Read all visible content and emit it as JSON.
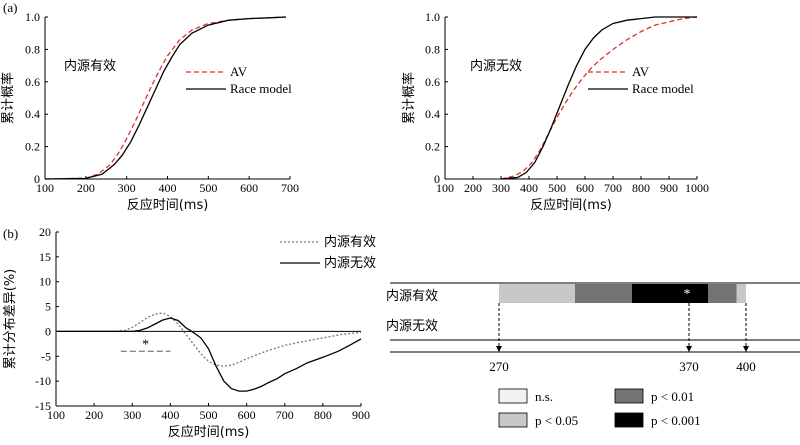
{
  "panel_labels": {
    "a": "(a)",
    "b": "(b)"
  },
  "chart_data": [
    {
      "type": "line",
      "title": "内源有效",
      "xlabel": "反应时间(ms)",
      "ylabel": "累计概率",
      "xlim": [
        100,
        700
      ],
      "ylim": [
        0,
        1.0
      ],
      "xticks": [
        100,
        200,
        300,
        400,
        500,
        600,
        700
      ],
      "yticks": [
        0,
        0.2,
        0.4,
        0.6,
        0.8,
        1.0
      ],
      "yticklabels": [
        "0",
        "0.2",
        "0.4",
        "0.6",
        "0.8",
        "1.0"
      ],
      "legend": [
        "AV",
        "Race model"
      ],
      "series": [
        {
          "name": "AV",
          "style": "dashed",
          "color": "#e0302a",
          "x": [
            100,
            200,
            230,
            260,
            280,
            300,
            320,
            340,
            360,
            380,
            400,
            430,
            460,
            500,
            550,
            600,
            650,
            690
          ],
          "y": [
            0,
            0.005,
            0.03,
            0.09,
            0.16,
            0.25,
            0.35,
            0.46,
            0.57,
            0.67,
            0.76,
            0.86,
            0.92,
            0.96,
            0.98,
            0.99,
            0.995,
            1.0
          ]
        },
        {
          "name": "Race model",
          "style": "solid",
          "color": "#000000",
          "x": [
            100,
            200,
            240,
            270,
            290,
            310,
            330,
            350,
            370,
            390,
            410,
            430,
            460,
            500,
            550,
            600,
            650,
            690
          ],
          "y": [
            0,
            0.004,
            0.03,
            0.09,
            0.15,
            0.23,
            0.33,
            0.44,
            0.55,
            0.66,
            0.75,
            0.83,
            0.9,
            0.95,
            0.98,
            0.99,
            0.995,
            1.0
          ]
        }
      ]
    },
    {
      "type": "line",
      "title": "内源无效",
      "xlabel": "反应时间(ms)",
      "ylabel": "累计概率",
      "xlim": [
        100,
        1000
      ],
      "ylim": [
        0,
        1.0
      ],
      "xticks": [
        100,
        200,
        300,
        400,
        500,
        600,
        700,
        800,
        900,
        1000
      ],
      "yticks": [
        0,
        0.2,
        0.4,
        0.6,
        0.8,
        1.0
      ],
      "yticklabels": [
        "0",
        "0.2",
        "0.4",
        "0.6",
        "0.8",
        "1.0"
      ],
      "legend": [
        "AV",
        "Race model"
      ],
      "series": [
        {
          "name": "AV",
          "style": "dashed",
          "color": "#e0302a",
          "x": [
            300,
            350,
            380,
            410,
            440,
            470,
            500,
            530,
            560,
            590,
            620,
            650,
            700,
            750,
            800,
            850,
            900,
            950,
            1000
          ],
          "y": [
            0,
            0.02,
            0.05,
            0.1,
            0.18,
            0.28,
            0.38,
            0.47,
            0.55,
            0.62,
            0.68,
            0.73,
            0.8,
            0.86,
            0.91,
            0.95,
            0.97,
            0.99,
            1.0
          ]
        },
        {
          "name": "Race model",
          "style": "solid",
          "color": "#000000",
          "x": [
            300,
            360,
            390,
            420,
            450,
            480,
            510,
            540,
            570,
            600,
            630,
            660,
            700,
            750,
            800,
            850,
            900,
            950,
            1000
          ],
          "y": [
            0,
            0.01,
            0.04,
            0.1,
            0.2,
            0.32,
            0.45,
            0.58,
            0.7,
            0.8,
            0.87,
            0.92,
            0.96,
            0.98,
            0.99,
            1.0,
            1.0,
            1.0,
            1.0
          ]
        }
      ]
    },
    {
      "type": "line",
      "xlabel": "反应时间(ms)",
      "ylabel": "累计分布差异(%)",
      "xlim": [
        100,
        900
      ],
      "ylim": [
        -15,
        20
      ],
      "xticks": [
        100,
        200,
        300,
        400,
        500,
        600,
        700,
        800,
        900
      ],
      "yticks": [
        -15,
        -10,
        -5,
        0,
        5,
        10,
        15,
        20
      ],
      "zero_line": true,
      "legend": [
        "内源有效",
        "内源无效"
      ],
      "annotation": {
        "text": "*",
        "x_range": [
          270,
          400
        ],
        "y": -4
      },
      "series": [
        {
          "name": "内源有效",
          "style": "dotted",
          "color": "#777777",
          "x": [
            100,
            250,
            280,
            300,
            320,
            340,
            360,
            380,
            400,
            420,
            440,
            460,
            480,
            500,
            520,
            540,
            560,
            580,
            600,
            650,
            700,
            750,
            800,
            850,
            900
          ],
          "y": [
            0,
            0,
            0.2,
            0.8,
            1.8,
            2.8,
            3.5,
            3.7,
            3.0,
            1.5,
            -0.5,
            -2.5,
            -4.5,
            -6,
            -6.8,
            -7,
            -6.8,
            -6.2,
            -5.5,
            -4,
            -2.8,
            -2,
            -1.3,
            -0.6,
            -0.2
          ]
        },
        {
          "name": "内源无效",
          "style": "solid",
          "color": "#000000",
          "x": [
            100,
            300,
            320,
            340,
            360,
            380,
            400,
            420,
            440,
            460,
            480,
            500,
            520,
            540,
            560,
            580,
            600,
            620,
            640,
            660,
            680,
            700,
            730,
            760,
            800,
            840,
            870,
            900
          ],
          "y": [
            0,
            0,
            0.2,
            0.7,
            1.5,
            2.3,
            2.7,
            2.2,
            0.8,
            -0.2,
            -1.3,
            -3.5,
            -7,
            -10,
            -11.5,
            -12,
            -12,
            -11.6,
            -11,
            -10.2,
            -9.5,
            -8.5,
            -7.5,
            -6.3,
            -5.2,
            -4,
            -2.8,
            -1.5
          ]
        }
      ]
    }
  ],
  "significance": {
    "rows": [
      "内源有效",
      "内源无效"
    ],
    "markers": [
      "270",
      "370",
      "400"
    ],
    "star": "*",
    "segments": [
      {
        "from": 270,
        "to": 310,
        "level": "p < 0.05",
        "color": "#c8c8c8"
      },
      {
        "from": 310,
        "to": 340,
        "level": "p < 0.01",
        "color": "#737373"
      },
      {
        "from": 340,
        "to": 380,
        "level": "p < 0.001",
        "color": "#000000"
      },
      {
        "from": 380,
        "to": 395,
        "level": "p < 0.01",
        "color": "#737373"
      },
      {
        "from": 395,
        "to": 400,
        "level": "p < 0.05",
        "color": "#c8c8c8"
      }
    ],
    "legend": [
      {
        "label": "n.s.",
        "color": "#f2f2f2"
      },
      {
        "label": "p < 0.01",
        "color": "#737373"
      },
      {
        "label": "p < 0.05",
        "color": "#c8c8c8"
      },
      {
        "label": "p < 0.001",
        "color": "#000000"
      }
    ]
  }
}
